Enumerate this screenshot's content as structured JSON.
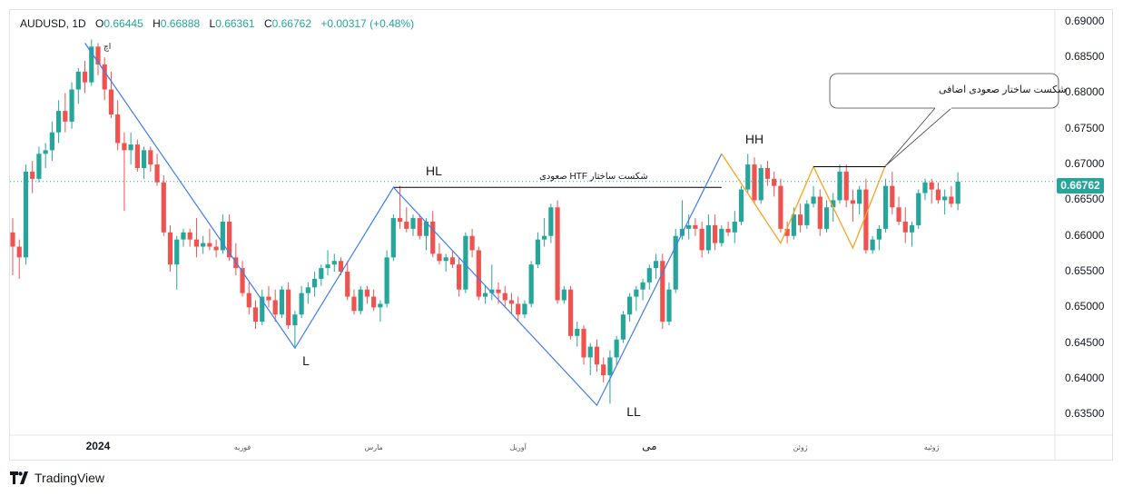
{
  "header": {
    "symbol": "AUDUSD, 1D",
    "open_label": "O",
    "open": "0.66445",
    "high_label": "H",
    "high": "0.66888",
    "low_label": "L",
    "low": "0.66361",
    "close_label": "C",
    "close": "0.66762",
    "change": "+0.00317 (+0.48%)"
  },
  "branding": {
    "name": "TradingView"
  },
  "price_badge": "0.66762",
  "colors": {
    "up": "#26a69a",
    "down": "#ef5350",
    "zigzag": "#3d7df0",
    "minor_zigzag": "#f5a623"
  },
  "annotations": {
    "L": "L",
    "HL": "HL",
    "LL": "LL",
    "HH": "HH",
    "top_mark": "اچ",
    "bos_htf": "شکست ساختار HTF صعودی",
    "callout": "شکست ساختار صعودی اضافی"
  },
  "chart_data": {
    "type": "candlestick",
    "symbol": "AUDUSD",
    "timeframe": "1D",
    "ylim": [
      0.6325,
      0.6915
    ],
    "y_ticks": [
      "0.69000",
      "0.68500",
      "0.68000",
      "0.67500",
      "0.67000",
      "0.66500",
      "0.66000",
      "0.65500",
      "0.65000",
      "0.64500",
      "0.64000",
      "0.63500"
    ],
    "x_ticks": [
      {
        "label": "2024",
        "bar": 13
      },
      {
        "label": "فوریه",
        "bar": 35
      },
      {
        "label": "مارس",
        "bar": 55
      },
      {
        "label": "آوریل",
        "bar": 77
      },
      {
        "label": "می",
        "bar": 97
      },
      {
        "label": "ژوئن",
        "bar": 120
      },
      {
        "label": "ژوئیه",
        "bar": 140
      }
    ],
    "candles": [
      [
        0.6605,
        0.6625,
        0.6545,
        0.6585
      ],
      [
        0.6585,
        0.6595,
        0.654,
        0.657
      ],
      [
        0.657,
        0.67,
        0.656,
        0.669
      ],
      [
        0.669,
        0.6705,
        0.666,
        0.668
      ],
      [
        0.668,
        0.6725,
        0.6675,
        0.6715
      ],
      [
        0.6715,
        0.673,
        0.6695,
        0.672
      ],
      [
        0.672,
        0.676,
        0.6705,
        0.6745
      ],
      [
        0.6745,
        0.679,
        0.673,
        0.6775
      ],
      [
        0.6775,
        0.68,
        0.6745,
        0.676
      ],
      [
        0.676,
        0.6815,
        0.675,
        0.6805
      ],
      [
        0.6805,
        0.6835,
        0.6785,
        0.683
      ],
      [
        0.683,
        0.6845,
        0.68,
        0.6815
      ],
      [
        0.6815,
        0.6875,
        0.681,
        0.6865
      ],
      [
        0.6865,
        0.687,
        0.6825,
        0.684
      ],
      [
        0.684,
        0.685,
        0.679,
        0.6805
      ],
      [
        0.6805,
        0.683,
        0.6765,
        0.677
      ],
      [
        0.677,
        0.679,
        0.672,
        0.673
      ],
      [
        0.673,
        0.6745,
        0.6635,
        0.672
      ],
      [
        0.672,
        0.6745,
        0.67,
        0.6728
      ],
      [
        0.6728,
        0.6735,
        0.669,
        0.6695
      ],
      [
        0.6695,
        0.6725,
        0.668,
        0.672
      ],
      [
        0.672,
        0.6725,
        0.669,
        0.67
      ],
      [
        0.67,
        0.6715,
        0.667,
        0.6675
      ],
      [
        0.6675,
        0.6685,
        0.66,
        0.6605
      ],
      [
        0.6605,
        0.6615,
        0.655,
        0.656
      ],
      [
        0.656,
        0.66,
        0.6525,
        0.6595
      ],
      [
        0.6595,
        0.661,
        0.6585,
        0.6605
      ],
      [
        0.6605,
        0.661,
        0.6585,
        0.6595
      ],
      [
        0.6595,
        0.6625,
        0.657,
        0.6585
      ],
      [
        0.6585,
        0.66,
        0.6575,
        0.659
      ],
      [
        0.659,
        0.661,
        0.658,
        0.6585
      ],
      [
        0.6585,
        0.6595,
        0.657,
        0.658
      ],
      [
        0.658,
        0.663,
        0.6575,
        0.662
      ],
      [
        0.662,
        0.663,
        0.6565,
        0.657
      ],
      [
        0.657,
        0.659,
        0.6545,
        0.6555
      ],
      [
        0.6555,
        0.6565,
        0.6515,
        0.652
      ],
      [
        0.652,
        0.6535,
        0.649,
        0.65
      ],
      [
        0.65,
        0.651,
        0.647,
        0.648
      ],
      [
        0.648,
        0.6525,
        0.6475,
        0.6515
      ],
      [
        0.6515,
        0.653,
        0.65,
        0.651
      ],
      [
        0.651,
        0.6525,
        0.648,
        0.649
      ],
      [
        0.649,
        0.653,
        0.6485,
        0.6525
      ],
      [
        0.6525,
        0.6535,
        0.647,
        0.6475
      ],
      [
        0.6475,
        0.6495,
        0.6445,
        0.649
      ],
      [
        0.649,
        0.653,
        0.6485,
        0.652
      ],
      [
        0.652,
        0.6535,
        0.6505,
        0.6528
      ],
      [
        0.6528,
        0.655,
        0.6515,
        0.654
      ],
      [
        0.654,
        0.656,
        0.653,
        0.6555
      ],
      [
        0.6555,
        0.658,
        0.6545,
        0.656
      ],
      [
        0.656,
        0.6575,
        0.655,
        0.6565
      ],
      [
        0.6565,
        0.657,
        0.6545,
        0.655
      ],
      [
        0.655,
        0.6565,
        0.651,
        0.6515
      ],
      [
        0.6515,
        0.6525,
        0.649,
        0.6495
      ],
      [
        0.6495,
        0.653,
        0.649,
        0.6525
      ],
      [
        0.6525,
        0.653,
        0.6505,
        0.6515
      ],
      [
        0.6515,
        0.6525,
        0.6495,
        0.65
      ],
      [
        0.65,
        0.651,
        0.648,
        0.6505
      ],
      [
        0.6505,
        0.658,
        0.65,
        0.657
      ],
      [
        0.657,
        0.663,
        0.6565,
        0.6625
      ],
      [
        0.6625,
        0.667,
        0.661,
        0.662
      ],
      [
        0.662,
        0.664,
        0.6605,
        0.661
      ],
      [
        0.661,
        0.663,
        0.66,
        0.6625
      ],
      [
        0.6625,
        0.663,
        0.6595,
        0.66
      ],
      [
        0.66,
        0.6625,
        0.658,
        0.662
      ],
      [
        0.662,
        0.6635,
        0.657,
        0.6575
      ],
      [
        0.6575,
        0.659,
        0.656,
        0.6565
      ],
      [
        0.6565,
        0.6575,
        0.655,
        0.657
      ],
      [
        0.657,
        0.658,
        0.6555,
        0.656
      ],
      [
        0.656,
        0.657,
        0.6515,
        0.6525
      ],
      [
        0.6525,
        0.6605,
        0.652,
        0.66
      ],
      [
        0.66,
        0.661,
        0.657,
        0.658
      ],
      [
        0.658,
        0.6585,
        0.651,
        0.6515
      ],
      [
        0.6515,
        0.653,
        0.6505,
        0.652
      ],
      [
        0.652,
        0.656,
        0.651,
        0.6525
      ],
      [
        0.6525,
        0.6535,
        0.6505,
        0.652
      ],
      [
        0.652,
        0.653,
        0.65,
        0.651
      ],
      [
        0.651,
        0.652,
        0.649,
        0.6505
      ],
      [
        0.6505,
        0.6515,
        0.648,
        0.649
      ],
      [
        0.649,
        0.651,
        0.6485,
        0.6505
      ],
      [
        0.6505,
        0.6565,
        0.65,
        0.656
      ],
      [
        0.656,
        0.6605,
        0.6555,
        0.6595
      ],
      [
        0.6595,
        0.6625,
        0.6585,
        0.66
      ],
      [
        0.66,
        0.6645,
        0.659,
        0.664
      ],
      [
        0.664,
        0.665,
        0.6505,
        0.651
      ],
      [
        0.651,
        0.653,
        0.6505,
        0.6525
      ],
      [
        0.6525,
        0.653,
        0.6455,
        0.646
      ],
      [
        0.646,
        0.648,
        0.6445,
        0.647
      ],
      [
        0.647,
        0.6475,
        0.642,
        0.643
      ],
      [
        0.643,
        0.645,
        0.6405,
        0.6445
      ],
      [
        0.6445,
        0.6455,
        0.641,
        0.642
      ],
      [
        0.642,
        0.643,
        0.6395,
        0.6405
      ],
      [
        0.6405,
        0.644,
        0.6365,
        0.643
      ],
      [
        0.643,
        0.646,
        0.642,
        0.6455
      ],
      [
        0.6455,
        0.6495,
        0.645,
        0.649
      ],
      [
        0.649,
        0.652,
        0.648,
        0.6515
      ],
      [
        0.6515,
        0.653,
        0.6495,
        0.6525
      ],
      [
        0.6525,
        0.654,
        0.651,
        0.6535
      ],
      [
        0.6535,
        0.656,
        0.6525,
        0.6555
      ],
      [
        0.6555,
        0.6575,
        0.654,
        0.6565
      ],
      [
        0.6565,
        0.6575,
        0.647,
        0.648
      ],
      [
        0.648,
        0.6535,
        0.6475,
        0.6525
      ],
      [
        0.6525,
        0.661,
        0.652,
        0.66
      ],
      [
        0.66,
        0.665,
        0.6595,
        0.661
      ],
      [
        0.661,
        0.663,
        0.6595,
        0.6615
      ],
      [
        0.6615,
        0.6625,
        0.66,
        0.661
      ],
      [
        0.661,
        0.662,
        0.657,
        0.658
      ],
      [
        0.658,
        0.663,
        0.6575,
        0.6615
      ],
      [
        0.6615,
        0.663,
        0.658,
        0.659
      ],
      [
        0.659,
        0.6615,
        0.6585,
        0.661
      ],
      [
        0.661,
        0.662,
        0.66,
        0.6605
      ],
      [
        0.6605,
        0.6635,
        0.659,
        0.662
      ],
      [
        0.662,
        0.667,
        0.6615,
        0.6665
      ],
      [
        0.6665,
        0.6715,
        0.666,
        0.67
      ],
      [
        0.67,
        0.671,
        0.6645,
        0.665
      ],
      [
        0.665,
        0.67,
        0.6645,
        0.6695
      ],
      [
        0.6695,
        0.6705,
        0.667,
        0.668
      ],
      [
        0.668,
        0.669,
        0.6655,
        0.667
      ],
      [
        0.667,
        0.668,
        0.6605,
        0.661
      ],
      [
        0.661,
        0.662,
        0.659,
        0.66
      ],
      [
        0.66,
        0.664,
        0.6595,
        0.663
      ],
      [
        0.663,
        0.6645,
        0.6605,
        0.6615
      ],
      [
        0.6615,
        0.665,
        0.661,
        0.6645
      ],
      [
        0.6645,
        0.667,
        0.664,
        0.6655
      ],
      [
        0.6655,
        0.6665,
        0.66,
        0.661
      ],
      [
        0.661,
        0.665,
        0.6605,
        0.664
      ],
      [
        0.664,
        0.666,
        0.662,
        0.665
      ],
      [
        0.665,
        0.67,
        0.6645,
        0.669
      ],
      [
        0.669,
        0.67,
        0.664,
        0.665
      ],
      [
        0.665,
        0.6665,
        0.662,
        0.6645
      ],
      [
        0.6645,
        0.667,
        0.663,
        0.6665
      ],
      [
        0.6665,
        0.668,
        0.6575,
        0.658
      ],
      [
        0.658,
        0.66,
        0.6575,
        0.6595
      ],
      [
        0.6595,
        0.6615,
        0.658,
        0.661
      ],
      [
        0.661,
        0.668,
        0.6605,
        0.667
      ],
      [
        0.667,
        0.669,
        0.663,
        0.664
      ],
      [
        0.664,
        0.6655,
        0.6615,
        0.662
      ],
      [
        0.662,
        0.664,
        0.659,
        0.6605
      ],
      [
        0.6605,
        0.662,
        0.6585,
        0.6615
      ],
      [
        0.6615,
        0.6665,
        0.661,
        0.666
      ],
      [
        0.666,
        0.668,
        0.665,
        0.6675
      ],
      [
        0.6675,
        0.668,
        0.6645,
        0.6665
      ],
      [
        0.6665,
        0.6675,
        0.6645,
        0.665
      ],
      [
        0.665,
        0.6665,
        0.663,
        0.6655
      ],
      [
        0.6655,
        0.667,
        0.664,
        0.6645
      ],
      [
        0.6645,
        0.6689,
        0.6636,
        0.6676
      ]
    ],
    "zigzag": [
      {
        "bar": 11,
        "price": 0.687
      },
      {
        "bar": 43,
        "price": 0.6443
      },
      {
        "bar": 58,
        "price": 0.6668
      },
      {
        "bar": 89,
        "price": 0.6363
      },
      {
        "bar": 108,
        "price": 0.6715
      }
    ],
    "minor_zigzag": [
      {
        "bar": 108,
        "price": 0.6715
      },
      {
        "bar": 117,
        "price": 0.659
      },
      {
        "bar": 122,
        "price": 0.6697
      },
      {
        "bar": 128,
        "price": 0.6583
      },
      {
        "bar": 133,
        "price": 0.67
      }
    ],
    "bos_line": {
      "price": 0.6668,
      "from_bar": 58,
      "to_bar": 108
    },
    "minor_bos_line": {
      "price": 0.6697,
      "from_bar": 122,
      "to_bar": 133
    },
    "last_price_line": 0.66762
  }
}
